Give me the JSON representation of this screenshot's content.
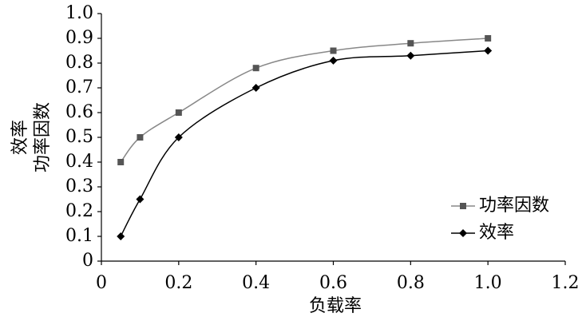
{
  "chart_data": {
    "type": "line",
    "xlabel": "负载率",
    "ylabel": [
      "效率",
      "功率因数"
    ],
    "x": [
      0.05,
      0.1,
      0.2,
      0.4,
      0.6,
      0.8,
      {
        "value": 1,
        "label": "1.0"
      }
    ],
    "series": [
      {
        "name": "功率因数",
        "color": "#555555",
        "line_color": "#888888",
        "marker": "square",
        "values": [
          0.4,
          0.5,
          0.6,
          0.78,
          0.85,
          0.88,
          0.9
        ]
      },
      {
        "name": "效率",
        "color": "#000000",
        "line_color": "#000000",
        "marker": "diamond",
        "values": [
          0.1,
          0.25,
          0.5,
          0.7,
          0.81,
          0.83,
          0.85
        ]
      }
    ],
    "xlim": [
      0,
      1.2
    ],
    "xticks": [
      0,
      0.2,
      0.4,
      0.6,
      0.8,
      {
        "value": 1,
        "label": "1.0"
      },
      1.2
    ],
    "ylim": [
      0,
      1
    ],
    "yticks": [
      0,
      0.1,
      0.2,
      0.3,
      0.4,
      0.5,
      0.6,
      0.7,
      0.8,
      0.9,
      {
        "value": 1,
        "label": "1.0"
      }
    ],
    "grid": false,
    "legend": "lower-right"
  }
}
